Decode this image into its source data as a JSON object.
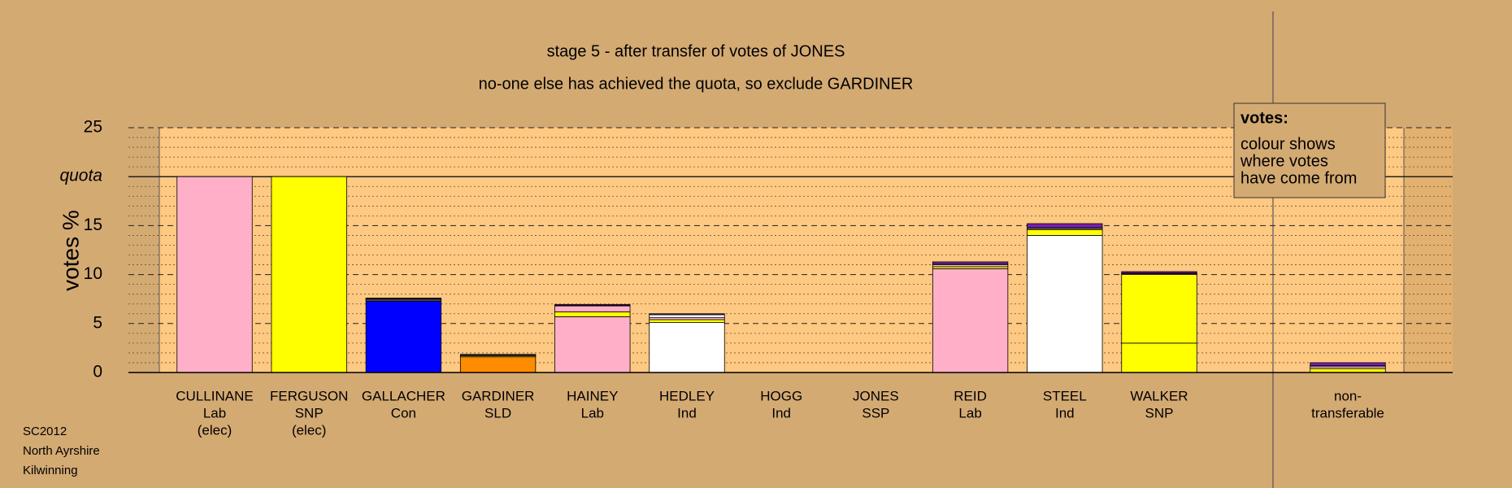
{
  "chart_data": {
    "type": "bar",
    "stacked": true,
    "title": "stage 5 - after transfer of votes of JONES",
    "subtitle": "no-one else has achieved the quota, so exclude GARDINER",
    "y_label": "votes %",
    "categories": [
      [
        "CULLINANE",
        "Lab",
        "(elec)"
      ],
      [
        "FERGUSON",
        "SNP",
        "(elec)"
      ],
      [
        "GALLACHER",
        "Con"
      ],
      [
        "GARDINER",
        "SLD"
      ],
      [
        "HAINEY",
        "Lab"
      ],
      [
        "HEDLEY",
        "Ind"
      ],
      [
        "HOGG",
        "Ind"
      ],
      [
        "JONES",
        "SSP"
      ],
      [
        "REID",
        "Lab"
      ],
      [
        "STEEL",
        "Ind"
      ],
      [
        "WALKER",
        "SNP"
      ],
      [
        "non-",
        "transferable"
      ]
    ],
    "series": [
      {
        "colors": [
          "#ffb0c8",
          "#ffff00",
          "#0000ff",
          "#ff8c00",
          "#ffb0c8",
          "#ffffff",
          "#ffffff",
          "#7a1fb0",
          "#ffb0c8",
          "#ffffff",
          "#ffff00",
          "#d4a870"
        ],
        "values": [
          20,
          20,
          7.3,
          1.6,
          5.7,
          5.1,
          0,
          0,
          10.6,
          14.0,
          3.0,
          0
        ]
      },
      {
        "color": "#ffff00",
        "values": [
          0,
          0,
          0.1,
          0.1,
          0.5,
          0.3,
          0,
          0,
          0.2,
          0.6,
          7.0,
          0.4
        ]
      },
      {
        "color": "#ffb0c8",
        "values": [
          0,
          0,
          0.1,
          0.1,
          0.6,
          0.2,
          0,
          0,
          0.2,
          0.1,
          0.1,
          0.2
        ]
      },
      {
        "color": "#ffffff",
        "values": [
          0,
          0,
          0.05,
          0,
          0.05,
          0.3,
          0,
          0,
          0.1,
          0.1,
          0.05,
          0.1
        ]
      },
      {
        "color": "#7a1fb0",
        "values": [
          0,
          0,
          0.05,
          0.05,
          0.1,
          0.1,
          0,
          0,
          0.2,
          0.4,
          0.15,
          0.3
        ]
      }
    ],
    "ylim": [
      0,
      25
    ],
    "yticks": [
      0,
      5,
      10,
      15,
      {
        "value": 20,
        "label": "quota"
      },
      25
    ],
    "minor_yticks": [
      1,
      2,
      3,
      4,
      6,
      7,
      8,
      9,
      11,
      12,
      13,
      14,
      16,
      17,
      18,
      19,
      21,
      22,
      23,
      24
    ],
    "grid": true,
    "legend_note": {
      "title": "votes:",
      "lines": [
        "colour shows",
        "where votes",
        "have come from"
      ]
    },
    "footer": [
      "SC2012",
      "North Ayrshire",
      "Kilwinning"
    ]
  }
}
